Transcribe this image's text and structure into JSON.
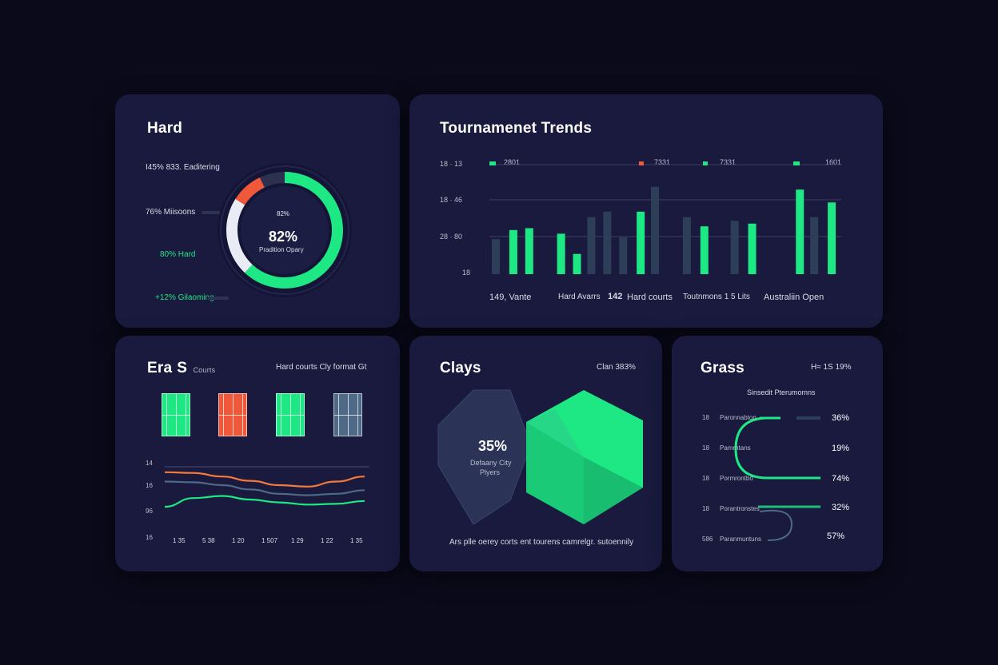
{
  "colors": {
    "background": "#0a0a1a",
    "card": "#191a3d",
    "green": "#1ee884",
    "red": "#f0583a",
    "orange": "#f47a3c",
    "slate": "#4e6a86",
    "dark_bar": "#2d3f58"
  },
  "hard": {
    "title": "Hard",
    "legend": [
      {
        "text": "I45% 833. Eaditering",
        "color": "#d9dbe6"
      },
      {
        "text": "76% Miisoons",
        "color": "#d9dbe6"
      },
      {
        "text": "80% Hard",
        "color": "#1ee884"
      },
      {
        "text": "+12% Gilaoming",
        "color": "#1ee884"
      }
    ],
    "donut_top": "82%",
    "donut_value": "82%",
    "donut_caption": "Pradition Opary",
    "donut_segments": [
      {
        "label": "green",
        "fraction": 0.62,
        "color": "#1ee884"
      },
      {
        "label": "white",
        "fraction": 0.22,
        "color": "#e9ecf4"
      },
      {
        "label": "red",
        "fraction": 0.09,
        "color": "#f0583a"
      },
      {
        "label": "dark",
        "fraction": 0.07,
        "color": "#2c3150"
      }
    ]
  },
  "trends": {
    "title": "Tournamenet Trends",
    "y_labels": [
      "18 · 13",
      "18 · 46",
      "28 · 80",
      "18"
    ],
    "top_markers": [
      "2801",
      "7331",
      "7331",
      "1601"
    ],
    "x_labels": [
      "149, Vante",
      "Hard Avarrs",
      "142",
      "Hard courts",
      "Toutnmons 1 5 Lits",
      "Australiin Open"
    ]
  },
  "chart_data": [
    {
      "type": "bar",
      "title": "Tournamenet Trends",
      "series": [
        {
          "name": "",
          "color": "#1ee884",
          "values": [
            0,
            48,
            50,
            0,
            44,
            22,
            0,
            0,
            0,
            68,
            0,
            0,
            0,
            52,
            0,
            0,
            55,
            0,
            0,
            92,
            0,
            78
          ]
        },
        {
          "name": "",
          "color": "#2d3f58",
          "values": [
            38,
            0,
            0,
            0,
            0,
            0,
            62,
            68,
            40,
            0,
            95,
            0,
            62,
            0,
            0,
            58,
            0,
            0,
            0,
            0,
            62,
            0
          ]
        }
      ]
    },
    {
      "type": "line",
      "y_labels": [
        "14",
        "16",
        "96",
        "16"
      ],
      "x_labels": [
        "1 35",
        "5 38",
        "1 20",
        "1 507",
        "1 29",
        "1 22",
        "1 35"
      ],
      "series": [
        {
          "name": "",
          "color": "#f47a3c",
          "values": [
            88,
            87,
            82,
            76,
            70,
            68,
            75,
            82
          ]
        },
        {
          "name": "",
          "color": "#4e6a86",
          "values": [
            75,
            74,
            70,
            64,
            58,
            56,
            58,
            63
          ]
        },
        {
          "name": "",
          "color": "#1ee884",
          "values": [
            40,
            52,
            55,
            50,
            46,
            43,
            44,
            48
          ]
        }
      ]
    }
  ],
  "eras": {
    "title_a": "Era",
    "title_b": "S",
    "title_c": "Courts",
    "right_label": "Hard courts Cly format Gt",
    "courts": [
      "#1ee884",
      "#f0583a",
      "#1ee884",
      "#4e6a86"
    ]
  },
  "clays": {
    "title": "Clays",
    "right_label": "Clan 383%",
    "hex_value": "35%",
    "hex_caption_1": "Defaany City",
    "hex_caption_2": "Plyers",
    "footer": "Ars plle oerey corts ent tourens camrelgr. sutoennily"
  },
  "grass": {
    "title": "Grass",
    "right_label": "H≈ 1S 19%",
    "subtitle": "Sinsedit Pterumomns",
    "rows": [
      {
        "num": "18",
        "label": "Paronnabton",
        "value": "36%"
      },
      {
        "num": "18",
        "label": "Pamrntans",
        "value": "19%"
      },
      {
        "num": "18",
        "label": "Pormrontbo",
        "value": "74%"
      },
      {
        "num": "18",
        "label": "Porantronstes",
        "value": "32%"
      },
      {
        "num": "586",
        "label": "Paranmuntuns",
        "value": "57%"
      }
    ]
  }
}
